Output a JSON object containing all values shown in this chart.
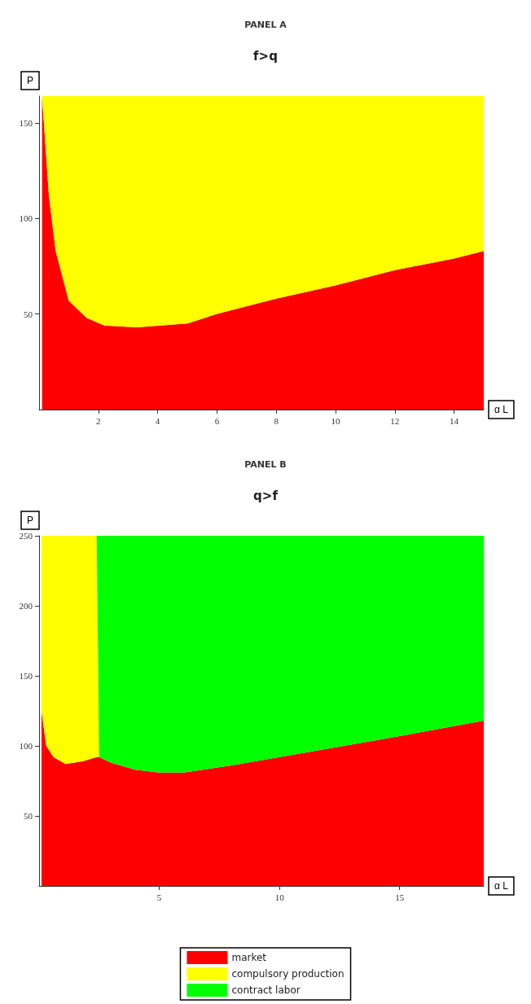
{
  "chart_data": [
    {
      "type": "area",
      "title": "PANEL A",
      "subtitle": "f>q",
      "xlabel": "α L",
      "ylabel": "P",
      "stacked": true,
      "grid": false,
      "legend": false,
      "x": [
        0.1,
        0.33,
        0.56,
        1,
        1.6,
        2.2,
        3.3,
        5,
        6,
        8,
        10,
        12,
        14,
        15
      ],
      "xlim": [
        0,
        15
      ],
      "xticks": [
        2,
        4,
        6,
        8,
        10,
        12,
        14
      ],
      "ylim": [
        0,
        164
      ],
      "yticks": [
        50,
        100,
        150
      ],
      "series": [
        {
          "color": "#ff0000",
          "values": [
            164,
            112,
            83,
            57,
            48,
            44,
            43,
            45,
            50,
            58,
            65,
            73,
            79,
            83
          ]
        },
        {
          "color": "#ffff00",
          "values": [
            0,
            52,
            81,
            107,
            116,
            120,
            121,
            119,
            114,
            106,
            99,
            91,
            85,
            81
          ]
        }
      ]
    },
    {
      "type": "area",
      "title": "PANEL B",
      "subtitle": "q>f",
      "xlabel": "α L",
      "ylabel": "P",
      "stacked": true,
      "grid": false,
      "legend": "bottom",
      "x": [
        0.1,
        0.3,
        0.6,
        1.1,
        1.8,
        2.4,
        2.5,
        3,
        4,
        5,
        6,
        8,
        10,
        12,
        15,
        18.5
      ],
      "xlim": [
        0,
        18.5
      ],
      "xticks": [
        5,
        10,
        15
      ],
      "ylim": [
        0,
        250
      ],
      "yticks": [
        50,
        100,
        150,
        200,
        250
      ],
      "series": [
        {
          "name": "market",
          "color": "#ff0000",
          "values": [
            125,
            100,
            92,
            87,
            89,
            92,
            92,
            88,
            83,
            81,
            81,
            86,
            92,
            98,
            107,
            118
          ]
        },
        {
          "name": "compulsory production",
          "color": "#ffff00",
          "values": [
            125,
            150,
            158,
            163,
            161,
            158,
            0,
            null,
            null,
            null,
            null,
            null,
            null,
            null,
            null,
            null
          ]
        },
        {
          "name": "contract labor",
          "color": "#00ff00",
          "values": [
            null,
            null,
            null,
            null,
            null,
            0,
            158,
            162,
            167,
            169,
            169,
            164,
            158,
            152,
            143,
            132
          ]
        }
      ]
    }
  ]
}
